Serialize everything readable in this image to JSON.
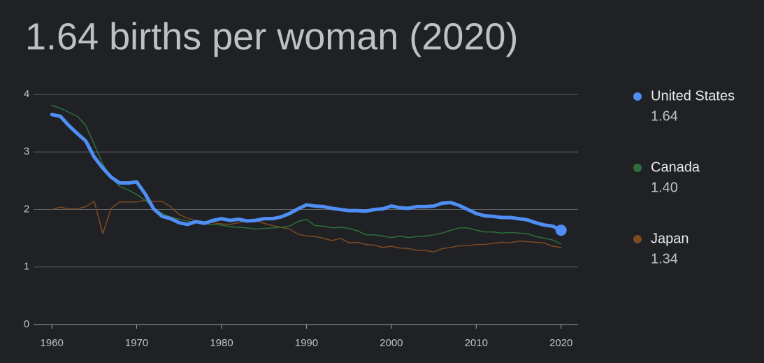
{
  "chart_data": {
    "type": "line",
    "title": "1.64 births per woman (2020)",
    "x": [
      1960,
      1961,
      1962,
      1963,
      1964,
      1965,
      1966,
      1967,
      1968,
      1969,
      1970,
      1971,
      1972,
      1973,
      1974,
      1975,
      1976,
      1977,
      1978,
      1979,
      1980,
      1981,
      1982,
      1983,
      1984,
      1985,
      1986,
      1987,
      1988,
      1989,
      1990,
      1991,
      1992,
      1993,
      1994,
      1995,
      1996,
      1997,
      1998,
      1999,
      2000,
      2001,
      2002,
      2003,
      2004,
      2005,
      2006,
      2007,
      2008,
      2009,
      2010,
      2011,
      2012,
      2013,
      2014,
      2015,
      2016,
      2017,
      2018,
      2019,
      2020
    ],
    "series": [
      {
        "name": "United States",
        "color": "#4f8ff5",
        "width": 5,
        "values": [
          3.65,
          3.62,
          3.46,
          3.32,
          3.19,
          2.91,
          2.72,
          2.56,
          2.46,
          2.46,
          2.48,
          2.27,
          2.01,
          1.88,
          1.84,
          1.77,
          1.74,
          1.79,
          1.76,
          1.81,
          1.84,
          1.81,
          1.83,
          1.8,
          1.81,
          1.84,
          1.84,
          1.87,
          1.93,
          2.01,
          2.08,
          2.06,
          2.05,
          2.02,
          2.0,
          1.98,
          1.98,
          1.97,
          2.0,
          2.01,
          2.06,
          2.03,
          2.02,
          2.05,
          2.05,
          2.06,
          2.11,
          2.12,
          2.07,
          2.0,
          1.93,
          1.89,
          1.88,
          1.86,
          1.86,
          1.84,
          1.82,
          1.77,
          1.73,
          1.71,
          1.64
        ],
        "value_labels": [
          null,
          null,
          null,
          null,
          null,
          null,
          null,
          null,
          null,
          null,
          null,
          null,
          null,
          null,
          null,
          null,
          null,
          null,
          null,
          null,
          null,
          null,
          null,
          null,
          null,
          null,
          null,
          null,
          null,
          null,
          null,
          null,
          null,
          null,
          null,
          null,
          null,
          null,
          null,
          null,
          null,
          null,
          null,
          null,
          null,
          null,
          null,
          null,
          null,
          null,
          null,
          null,
          null,
          null,
          null,
          null,
          null,
          null,
          null,
          null,
          "1.64"
        ]
      },
      {
        "name": "Canada",
        "color": "#2e6f3c",
        "width": 1.5,
        "values": [
          3.81,
          3.76,
          3.69,
          3.62,
          3.46,
          3.13,
          2.79,
          2.55,
          2.4,
          2.34,
          2.26,
          2.16,
          2.03,
          1.93,
          1.87,
          1.83,
          1.8,
          1.77,
          1.75,
          1.74,
          1.73,
          1.7,
          1.69,
          1.68,
          1.66,
          1.67,
          1.68,
          1.69,
          1.71,
          1.79,
          1.83,
          1.72,
          1.71,
          1.68,
          1.69,
          1.67,
          1.63,
          1.56,
          1.56,
          1.54,
          1.51,
          1.54,
          1.51,
          1.53,
          1.54,
          1.56,
          1.59,
          1.64,
          1.68,
          1.68,
          1.64,
          1.61,
          1.61,
          1.59,
          1.6,
          1.59,
          1.58,
          1.53,
          1.5,
          1.47,
          1.4
        ],
        "value_labels": [
          null,
          null,
          null,
          null,
          null,
          null,
          null,
          null,
          null,
          null,
          null,
          null,
          null,
          null,
          null,
          null,
          null,
          null,
          null,
          null,
          null,
          null,
          null,
          null,
          null,
          null,
          null,
          null,
          null,
          null,
          null,
          null,
          null,
          null,
          null,
          null,
          null,
          null,
          null,
          null,
          null,
          null,
          null,
          null,
          null,
          null,
          null,
          null,
          null,
          null,
          null,
          null,
          null,
          null,
          null,
          null,
          null,
          null,
          null,
          null,
          "1.40"
        ]
      },
      {
        "name": "Japan",
        "color": "#7d4a22",
        "width": 1.5,
        "values": [
          2.0,
          2.04,
          2.01,
          2.01,
          2.05,
          2.14,
          1.58,
          2.02,
          2.13,
          2.13,
          2.13,
          2.16,
          2.14,
          2.14,
          2.05,
          1.91,
          1.85,
          1.8,
          1.79,
          1.77,
          1.75,
          1.74,
          1.77,
          1.8,
          1.81,
          1.76,
          1.72,
          1.69,
          1.66,
          1.57,
          1.54,
          1.53,
          1.5,
          1.46,
          1.5,
          1.42,
          1.43,
          1.39,
          1.38,
          1.34,
          1.36,
          1.33,
          1.32,
          1.29,
          1.29,
          1.26,
          1.32,
          1.34,
          1.37,
          1.37,
          1.39,
          1.39,
          1.41,
          1.43,
          1.42,
          1.45,
          1.44,
          1.43,
          1.42,
          1.36,
          1.34
        ],
        "value_labels": [
          null,
          null,
          null,
          null,
          null,
          null,
          null,
          null,
          null,
          null,
          null,
          null,
          null,
          null,
          null,
          null,
          null,
          null,
          null,
          null,
          null,
          null,
          null,
          null,
          null,
          null,
          null,
          null,
          null,
          null,
          null,
          null,
          null,
          null,
          null,
          null,
          null,
          null,
          null,
          null,
          null,
          null,
          null,
          null,
          null,
          null,
          null,
          null,
          null,
          null,
          null,
          null,
          null,
          null,
          null,
          null,
          null,
          null,
          null,
          null,
          "1.34"
        ]
      }
    ],
    "xlim": [
      1959,
      2022
    ],
    "xticks": [
      1960,
      1970,
      1980,
      1990,
      2000,
      2010,
      2020
    ],
    "ylim": [
      0,
      4
    ],
    "yticks": [
      0,
      1,
      2,
      3,
      4
    ],
    "grid": true,
    "legend": "right"
  }
}
